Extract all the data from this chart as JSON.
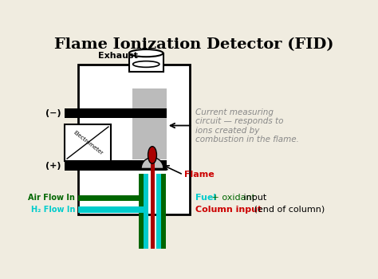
{
  "title": "Flame Ionization Detector (FID)",
  "title_fontsize": 14,
  "bg_color": "#f0ece0",
  "fig_bg": "#f0ece0",
  "colors": {
    "black": "#000000",
    "light_gray": "#bbbbbb",
    "medium_gray": "#999999",
    "white": "#ffffff",
    "flame_red": "#aa0000",
    "air_green": "#006600",
    "h2_cyan": "#00cccc",
    "annot_gray": "#888888",
    "annot_red": "#cc0000",
    "annot_green": "#006600",
    "nozzle_gray": "#c0c0c0",
    "tube_bg": "#dddddd"
  },
  "labels": {
    "exhaust": "Exhaust",
    "neg": "(−)",
    "pos": "(+)",
    "electrometer": "Electrometer",
    "flame": "Flame",
    "air_flow": "Air Flow In",
    "h2_flow": "H₂ Flow In",
    "current_line1": "Current measuring",
    "current_line2": "circuit — responds to",
    "current_line3": "ions created by",
    "current_line4": "combustion in the flame.",
    "fuel": "Fuel",
    "oxidant": " + oxidant",
    "input": " input",
    "column_input": "Column input",
    "end_of_column": " (end of column)"
  }
}
